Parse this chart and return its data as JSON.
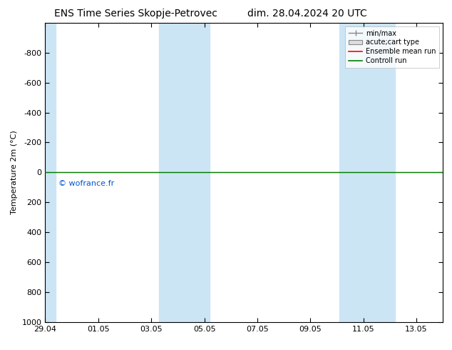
{
  "title_left": "ENS Time Series Skopje-Petrovec",
  "title_right": "dim. 28.04.2024 20 UTC",
  "ylabel": "Temperature 2m (°C)",
  "ylim_top": -1000,
  "ylim_bottom": 1000,
  "yticks": [
    -800,
    -600,
    -400,
    -200,
    0,
    200,
    400,
    600,
    800,
    1000
  ],
  "xtick_labels": [
    "29.04",
    "01.05",
    "03.05",
    "05.05",
    "07.05",
    "09.05",
    "11.05",
    "13.05"
  ],
  "xtick_positions": [
    0,
    2,
    4,
    6,
    8,
    10,
    12,
    14
  ],
  "xlim": [
    0,
    15
  ],
  "shaded_bands": [
    {
      "xstart": -0.05,
      "xend": 0.4
    },
    {
      "xstart": 4.3,
      "xend": 6.2
    },
    {
      "xstart": 11.1,
      "xend": 13.2
    }
  ],
  "green_line_y": 0,
  "green_line_color": "#008000",
  "red_line_color": "#ff0000",
  "copyright_text": "© wofrance.fr",
  "copyright_color": "#0055cc",
  "legend_items": [
    "min/max",
    "acute;cart type",
    "Ensemble mean run",
    "Controll run"
  ],
  "background_color": "#ffffff",
  "plot_bg_color": "#ffffff",
  "shade_color": "#cce5f5",
  "title_fontsize": 10,
  "axis_fontsize": 8,
  "tick_fontsize": 8,
  "legend_fontsize": 7
}
